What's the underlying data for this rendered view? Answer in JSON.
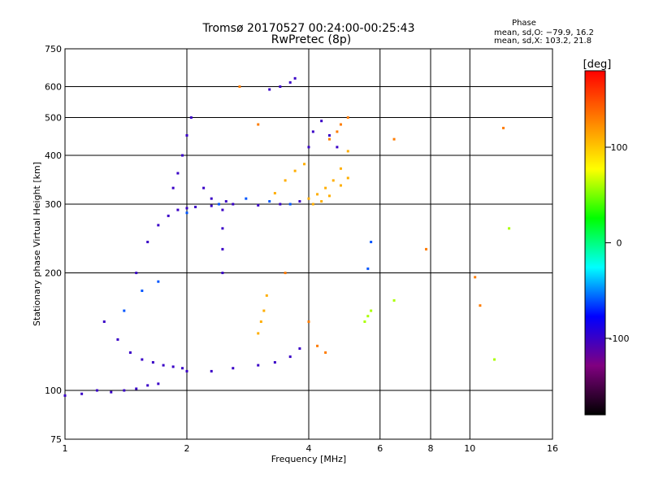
{
  "chart_data": {
    "type": "scatter",
    "title": "Tromsø 20170527 00:24:00-00:25:43",
    "subtitle": "RwPretec (8p)",
    "xlabel": "Frequency [MHz]",
    "ylabel": "Stationary phase Virtual Height [km]",
    "x_scale": "log",
    "y_scale": "log",
    "xlim": [
      1,
      16
    ],
    "ylim": [
      75,
      750
    ],
    "x_ticks": [
      1,
      2,
      4,
      6,
      8,
      10,
      16
    ],
    "y_ticks": [
      75,
      100,
      200,
      300,
      400,
      500,
      600,
      750
    ],
    "grid": true,
    "stats": {
      "heading": "Phase",
      "line_o": "mean, sd,O: −79.9, 16.2",
      "line_x": "mean, sd,X: 103.2, 21.8"
    },
    "colorbar": {
      "label": "[deg]",
      "range": [
        -180,
        180
      ],
      "ticks": [
        100,
        0,
        -100
      ],
      "colors": [
        "#ff0000",
        "#ff8000",
        "#ffff00",
        "#00ff00",
        "#00ffff",
        "#0000ff",
        "#800080",
        "#000000"
      ]
    },
    "series": [
      {
        "phase": -100,
        "traces": [
          {
            "x": [
              1.0,
              1.1,
              1.2,
              1.3,
              1.4,
              1.5,
              1.6,
              1.7
            ],
            "y": [
              97,
              98,
              100,
              99,
              100,
              101,
              103,
              104
            ]
          },
          {
            "x": [
              1.25,
              1.35,
              1.45,
              1.55,
              1.65,
              1.75,
              1.85,
              1.95
            ],
            "y": [
              150,
              135,
              125,
              120,
              118,
              116,
              115,
              114
            ]
          },
          {
            "x": [
              2.0,
              2.3,
              2.6,
              3.0,
              3.3,
              3.6,
              3.8
            ],
            "y": [
              112,
              112,
              114,
              116,
              118,
              122,
              128
            ]
          },
          {
            "x": [
              1.5,
              1.6,
              1.7,
              1.8,
              1.9,
              2.0,
              2.1,
              2.3,
              2.6,
              3.0,
              3.4,
              3.8
            ],
            "y": [
              200,
              240,
              265,
              280,
              290,
              293,
              295,
              297,
              300,
              298,
              300,
              305
            ]
          },
          {
            "x": [
              1.85,
              1.9,
              1.95,
              2.0,
              2.05
            ],
            "y": [
              330,
              360,
              400,
              450,
              500
            ]
          },
          {
            "x": [
              2.2,
              2.3,
              2.4,
              2.5
            ],
            "y": [
              330,
              310,
              300,
              305
            ]
          },
          {
            "x": [
              2.45,
              2.45,
              2.45,
              2.45
            ],
            "y": [
              200,
              230,
              260,
              290
            ]
          },
          {
            "x": [
              3.2,
              3.4,
              3.6,
              3.7
            ],
            "y": [
              590,
              600,
              615,
              630
            ]
          },
          {
            "x": [
              4.0,
              4.1,
              4.3,
              4.5,
              4.7
            ],
            "y": [
              420,
              460,
              490,
              450,
              420
            ]
          }
        ]
      },
      {
        "phase": -60,
        "traces": [
          {
            "x": [
              2.0,
              2.4,
              2.8,
              3.2,
              3.6
            ],
            "y": [
              285,
              300,
              310,
              305,
              300
            ]
          },
          {
            "x": [
              1.4,
              1.55,
              1.7
            ],
            "y": [
              160,
              180,
              190
            ]
          },
          {
            "x": [
              5.6,
              5.7
            ],
            "y": [
              205,
              240
            ]
          }
        ]
      },
      {
        "phase": 110,
        "traces": [
          {
            "x": [
              3.3,
              3.5,
              3.7,
              3.9
            ],
            "y": [
              320,
              345,
              365,
              380
            ]
          },
          {
            "x": [
              4.0,
              4.2,
              4.4,
              4.6,
              4.8,
              5.0
            ],
            "y": [
              310,
              318,
              330,
              345,
              370,
              410
            ]
          },
          {
            "x": [
              4.1,
              4.3,
              4.5,
              4.8,
              5.0
            ],
            "y": [
              300,
              305,
              315,
              335,
              350
            ]
          },
          {
            "x": [
              3.0,
              3.05,
              3.1,
              3.15
            ],
            "y": [
              140,
              150,
              160,
              175
            ]
          }
        ]
      },
      {
        "phase": 130,
        "traces": [
          {
            "x": [
              4.5,
              4.7,
              4.8,
              5.0
            ],
            "y": [
              440,
              460,
              480,
              500
            ]
          },
          {
            "x": [
              2.7,
              3.0,
              3.5,
              4.0,
              4.2,
              4.4
            ],
            "y": [
              600,
              480,
              200,
              150,
              130,
              125
            ]
          },
          {
            "x": [
              6.5,
              7.8,
              10.3,
              10.6,
              12.1
            ],
            "y": [
              440,
              230,
              195,
              165,
              470
            ]
          }
        ]
      },
      {
        "phase": 60,
        "traces": [
          {
            "x": [
              5.5,
              5.6,
              5.7,
              6.5,
              11.5,
              12.5
            ],
            "y": [
              150,
              155,
              160,
              170,
              120,
              260
            ]
          }
        ]
      }
    ]
  }
}
